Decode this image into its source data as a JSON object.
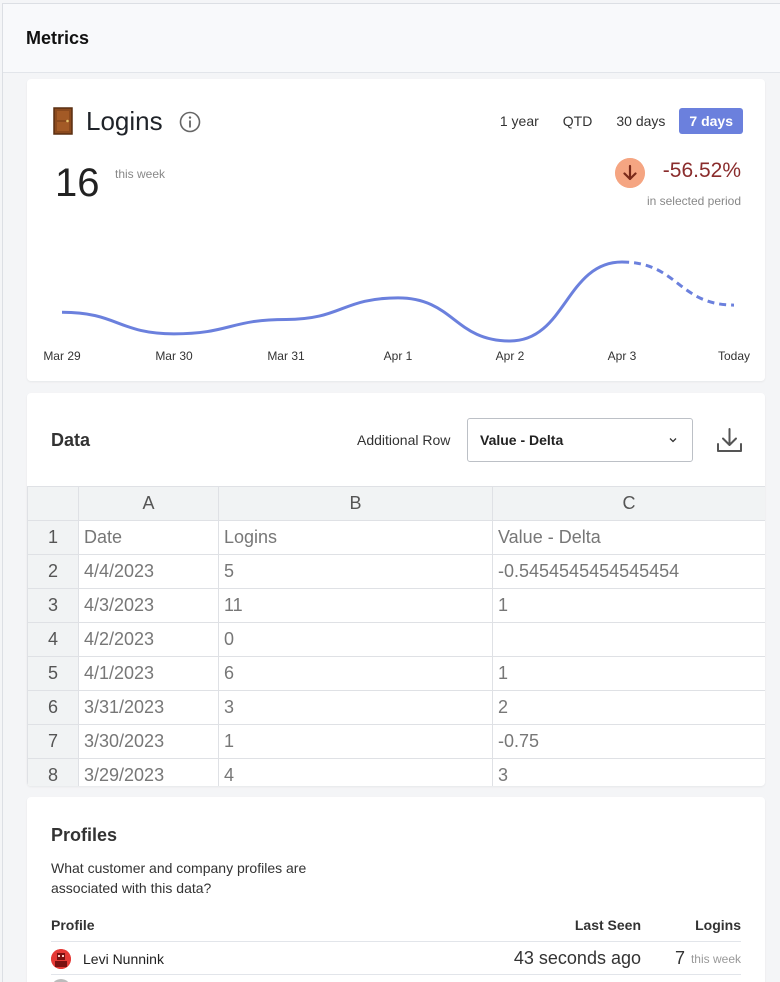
{
  "header": {
    "title": "Metrics"
  },
  "logins": {
    "title": "Logins",
    "icons": {
      "title_icon": "door-icon",
      "info": "info-icon",
      "delta": "arrow-down-icon"
    },
    "ranges": [
      "1 year",
      "QTD",
      "30 days",
      "7 days"
    ],
    "active_range": "7 days",
    "value": "16",
    "value_sub": "this week",
    "delta": "-56.52%",
    "delta_sub": "in selected period",
    "colors": {
      "accent": "#6b80dd",
      "delta_text": "#8a2c2c",
      "delta_badge": "#f5a582"
    }
  },
  "chart_data": {
    "type": "line",
    "categories": [
      "Mar 29",
      "Mar 30",
      "Mar 31",
      "Apr 1",
      "Apr 2",
      "Apr 3",
      "Today"
    ],
    "series": [
      {
        "values": [
          4,
          1,
          3,
          6,
          0,
          11,
          5
        ],
        "dashed_last_segment": true
      }
    ],
    "ylim": [
      0,
      11
    ],
    "grid": false,
    "color": "#6b80dd"
  },
  "data": {
    "title": "Data",
    "additional_row_label": "Additional Row",
    "select_value": "Value - Delta",
    "icons": {
      "chevron": "chevron-down-icon",
      "download": "download-icon"
    },
    "columns": [
      "A",
      "B",
      "C"
    ],
    "rows": [
      {
        "n": "1",
        "cells": [
          "Date",
          "Logins",
          "Value - Delta"
        ]
      },
      {
        "n": "2",
        "cells": [
          "4/4/2023",
          "5",
          "-0.5454545454545454"
        ]
      },
      {
        "n": "3",
        "cells": [
          "4/3/2023",
          "11",
          "1"
        ]
      },
      {
        "n": "4",
        "cells": [
          "4/2/2023",
          "0",
          ""
        ]
      },
      {
        "n": "5",
        "cells": [
          "4/1/2023",
          "6",
          "1"
        ]
      },
      {
        "n": "6",
        "cells": [
          "3/31/2023",
          "3",
          "2"
        ]
      },
      {
        "n": "7",
        "cells": [
          "3/30/2023",
          "1",
          "-0.75"
        ]
      },
      {
        "n": "8",
        "cells": [
          "3/29/2023",
          "4",
          "3"
        ]
      }
    ]
  },
  "profiles": {
    "title": "Profiles",
    "description": "What customer and company profiles are associated with this data?",
    "headers": {
      "profile": "Profile",
      "last_seen": "Last Seen",
      "logins": "Logins"
    },
    "rows": [
      {
        "name": "Levi Nunnink",
        "last_seen": "43 seconds ago",
        "logins": "7",
        "logins_sub": "this week"
      }
    ]
  }
}
